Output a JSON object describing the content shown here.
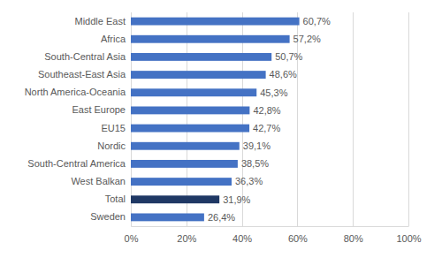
{
  "chart_data": {
    "type": "bar",
    "orientation": "horizontal",
    "categories": [
      "Middle East",
      "Africa",
      "South-Central Asia",
      "Southeast-East Asia",
      "North America-Oceania",
      "East Europe",
      "EU15",
      "Nordic",
      "South-Central America",
      "West Balkan",
      "Total",
      "Sweden"
    ],
    "values": [
      60.7,
      57.2,
      50.7,
      48.6,
      45.3,
      42.8,
      42.7,
      39.1,
      38.5,
      36.3,
      31.9,
      26.4
    ],
    "value_labels": [
      "60,7%",
      "57,2%",
      "50,7%",
      "48,6%",
      "45,3%",
      "42,8%",
      "42,7%",
      "39,1%",
      "38,5%",
      "36,3%",
      "31,9%",
      "26,4%"
    ],
    "colors": [
      "#4472c4",
      "#4472c4",
      "#4472c4",
      "#4472c4",
      "#4472c4",
      "#4472c4",
      "#4472c4",
      "#4472c4",
      "#4472c4",
      "#4472c4",
      "#1f3864",
      "#4472c4"
    ],
    "xlim": [
      0,
      100
    ],
    "xticks": [
      {
        "value": 0,
        "label": "0%"
      },
      {
        "value": 20,
        "label": "20%"
      },
      {
        "value": 40,
        "label": "40%"
      },
      {
        "value": 60,
        "label": "60%"
      },
      {
        "value": 80,
        "label": "80%"
      },
      {
        "value": 100,
        "label": "100%"
      }
    ],
    "grid": true,
    "data_labels": true
  }
}
